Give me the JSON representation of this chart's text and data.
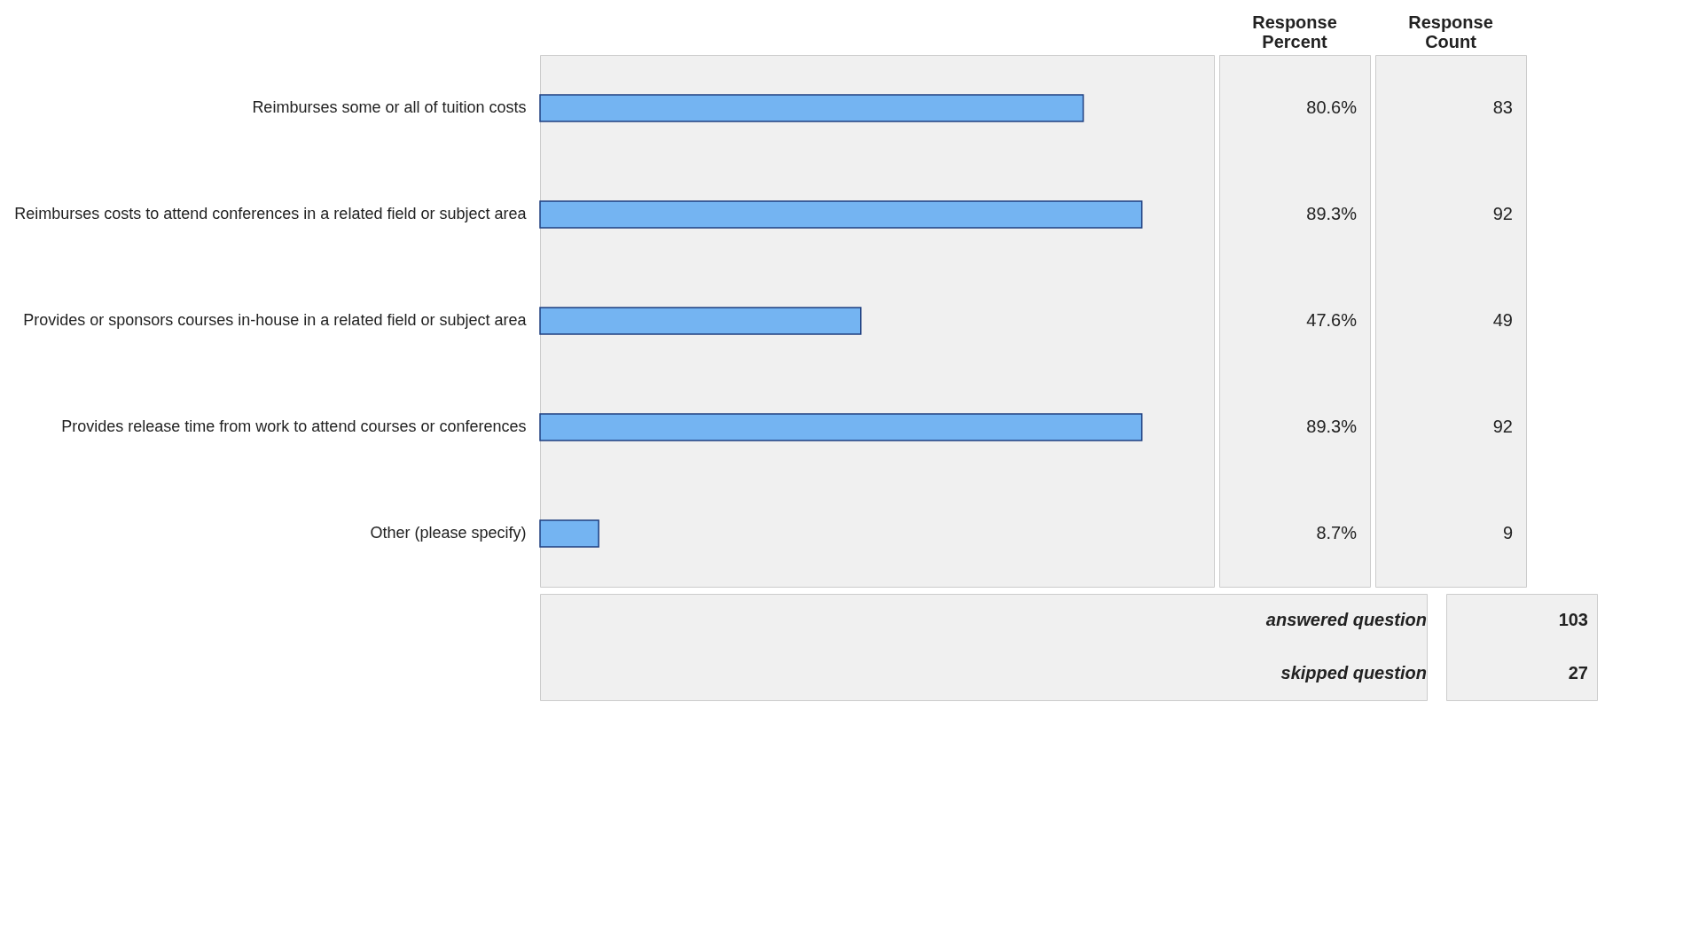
{
  "chart_data": {
    "type": "bar",
    "orientation": "horizontal",
    "categories": [
      "Reimburses some or all of tuition costs",
      "Reimburses costs to attend conferences in a related field or subject area",
      "Provides or sponsors courses in-house in a related field or subject area",
      "Provides release time from work to attend courses or conferences",
      "Other (please specify)"
    ],
    "values": [
      80.6,
      89.3,
      47.6,
      89.3,
      8.7
    ],
    "value_labels": [
      "80.6%",
      "89.3%",
      "47.6%",
      "89.3%",
      "8.7%"
    ],
    "color": "#74b4f2",
    "xlim": [
      0,
      100
    ],
    "tick_labels": "y",
    "annotations": [
      "Response Percent",
      "Response Count",
      "83",
      "92",
      "49",
      "92",
      "9",
      "answered question",
      "103",
      "skipped question",
      "27"
    ]
  }
}
